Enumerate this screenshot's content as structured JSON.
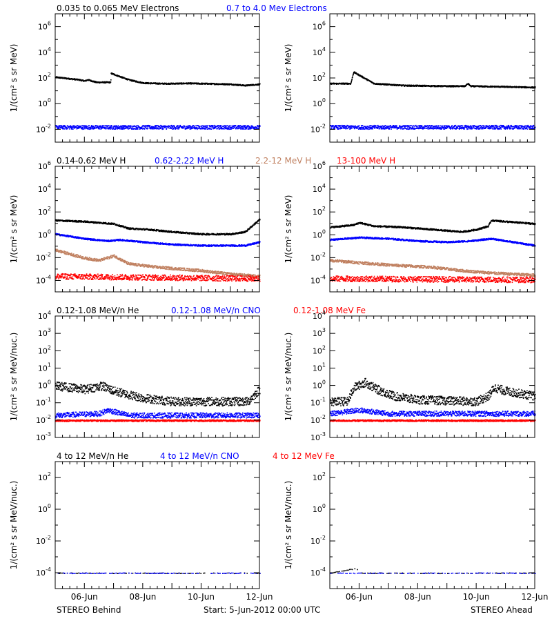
{
  "footer": {
    "left_label": "STEREO Behind",
    "center_label": "Start:  5-Jun-2012 00:00 UTC",
    "right_label": "STEREO Ahead"
  },
  "x_ticks": [
    "06-Jun",
    "08-Jun",
    "10-Jun",
    "12-Jun"
  ],
  "chart_data": [
    {
      "type": "scatter",
      "row": 1,
      "ylabel": "1/(cm² s sr MeV)",
      "log_y": true,
      "yticks_exp": [
        -2,
        0,
        2,
        4,
        6
      ],
      "ylim_exp": [
        -3,
        7
      ],
      "xlim_days": [
        5,
        12
      ],
      "legend": [
        {
          "text": "0.035 to 0.065 MeV Electrons",
          "color": "#000000"
        },
        {
          "text": "0.7 to 4.0 Mev Electrons",
          "color": "#0000ff"
        }
      ],
      "panels": {
        "behind": {
          "series": [
            {
              "color": "#000000",
              "knots": [
                [
                  5.0,
                  2.1
                ],
                [
                  5.8,
                  1.9
                ],
                [
                  6.0,
                  1.8
                ],
                [
                  6.1,
                  1.9
                ],
                [
                  6.4,
                  1.7
                ],
                [
                  6.89,
                  1.7
                ],
                [
                  6.9,
                  2.4
                ],
                [
                  7.5,
                  1.9
                ],
                [
                  8.0,
                  1.65
                ],
                [
                  8.6,
                  1.6
                ],
                [
                  9.0,
                  1.6
                ],
                [
                  9.5,
                  1.62
                ],
                [
                  10.0,
                  1.6
                ],
                [
                  11.0,
                  1.55
                ],
                [
                  11.5,
                  1.45
                ],
                [
                  12.0,
                  1.55
                ]
              ],
              "scatter": 0.05
            },
            {
              "color": "#0000ff",
              "knots": [
                [
                  5.0,
                  -1.8
                ],
                [
                  12.0,
                  -1.8
                ]
              ],
              "scatter": 0.15
            }
          ]
        },
        "ahead": {
          "series": [
            {
              "color": "#000000",
              "knots": [
                [
                  5.0,
                  1.6
                ],
                [
                  5.7,
                  1.6
                ],
                [
                  5.8,
                  2.5
                ],
                [
                  6.5,
                  1.6
                ],
                [
                  7.5,
                  1.45
                ],
                [
                  9.0,
                  1.4
                ],
                [
                  9.6,
                  1.4
                ],
                [
                  9.7,
                  1.6
                ],
                [
                  9.8,
                  1.4
                ],
                [
                  11.0,
                  1.35
                ],
                [
                  12.0,
                  1.3
                ]
              ],
              "scatter": 0.05
            },
            {
              "color": "#0000ff",
              "knots": [
                [
                  5.0,
                  -1.8
                ],
                [
                  12.0,
                  -1.8
                ]
              ],
              "scatter": 0.15
            }
          ]
        }
      }
    },
    {
      "type": "scatter",
      "row": 2,
      "ylabel": "1/(cm² s sr MeV)",
      "log_y": true,
      "yticks_exp": [
        -4,
        -2,
        0,
        2,
        4,
        6
      ],
      "ylim_exp": [
        -5,
        6
      ],
      "xlim_days": [
        5,
        12
      ],
      "legend": [
        {
          "text": "0.14-0.62 MeV H",
          "color": "#000000"
        },
        {
          "text": "0.62-2.22 MeV H",
          "color": "#0000ff"
        },
        {
          "text": "2.2-12 MeV H",
          "color": "#c08060"
        },
        {
          "text": "13-100 MeV H",
          "color": "#ff0000"
        }
      ],
      "panels": {
        "behind": {
          "series": [
            {
              "color": "#000000",
              "knots": [
                [
                  5.0,
                  1.3
                ],
                [
                  6.0,
                  1.2
                ],
                [
                  7.0,
                  1.0
                ],
                [
                  7.5,
                  0.6
                ],
                [
                  8.2,
                  0.5
                ],
                [
                  9.0,
                  0.3
                ],
                [
                  10.0,
                  0.1
                ],
                [
                  11.0,
                  0.1
                ],
                [
                  11.5,
                  0.3
                ],
                [
                  12.0,
                  1.4
                ]
              ],
              "scatter": 0.07
            },
            {
              "color": "#0000ff",
              "knots": [
                [
                  5.0,
                  0.1
                ],
                [
                  6.0,
                  -0.3
                ],
                [
                  6.8,
                  -0.5
                ],
                [
                  7.2,
                  -0.4
                ],
                [
                  8.0,
                  -0.6
                ],
                [
                  9.0,
                  -0.8
                ],
                [
                  10.0,
                  -0.9
                ],
                [
                  11.5,
                  -0.9
                ],
                [
                  12.0,
                  -0.6
                ]
              ],
              "scatter": 0.07
            },
            {
              "color": "#c08060",
              "knots": [
                [
                  5.0,
                  -1.3
                ],
                [
                  6.0,
                  -2.0
                ],
                [
                  6.5,
                  -2.2
                ],
                [
                  7.0,
                  -1.8
                ],
                [
                  7.5,
                  -2.5
                ],
                [
                  8.5,
                  -2.8
                ],
                [
                  10.0,
                  -3.1
                ],
                [
                  11.0,
                  -3.4
                ],
                [
                  12.0,
                  -3.6
                ]
              ],
              "scatter": 0.12
            },
            {
              "color": "#ff0000",
              "knots": [
                [
                  5.0,
                  -3.6
                ],
                [
                  12.0,
                  -3.8
                ]
              ],
              "scatter": 0.25
            }
          ]
        },
        "ahead": {
          "series": [
            {
              "color": "#000000",
              "knots": [
                [
                  5.0,
                  0.7
                ],
                [
                  5.8,
                  0.9
                ],
                [
                  6.0,
                  1.1
                ],
                [
                  6.5,
                  0.8
                ],
                [
                  7.5,
                  0.7
                ],
                [
                  8.5,
                  0.5
                ],
                [
                  9.5,
                  0.3
                ],
                [
                  10.0,
                  0.5
                ],
                [
                  10.4,
                  0.8
                ],
                [
                  10.5,
                  1.3
                ],
                [
                  11.0,
                  1.2
                ],
                [
                  12.0,
                  1.0
                ]
              ],
              "scatter": 0.07
            },
            {
              "color": "#0000ff",
              "knots": [
                [
                  5.0,
                  -0.4
                ],
                [
                  6.0,
                  -0.2
                ],
                [
                  7.0,
                  -0.3
                ],
                [
                  8.0,
                  -0.5
                ],
                [
                  9.0,
                  -0.6
                ],
                [
                  9.8,
                  -0.5
                ],
                [
                  10.5,
                  -0.3
                ],
                [
                  11.5,
                  -0.7
                ],
                [
                  12.0,
                  -0.9
                ]
              ],
              "scatter": 0.07
            },
            {
              "color": "#c08060",
              "knots": [
                [
                  5.0,
                  -2.2
                ],
                [
                  6.0,
                  -2.4
                ],
                [
                  7.0,
                  -2.6
                ],
                [
                  8.5,
                  -2.8
                ],
                [
                  9.5,
                  -3.1
                ],
                [
                  10.5,
                  -3.3
                ],
                [
                  12.0,
                  -3.5
                ]
              ],
              "scatter": 0.12
            },
            {
              "color": "#ff0000",
              "knots": [
                [
                  5.0,
                  -3.8
                ],
                [
                  12.0,
                  -3.9
                ]
              ],
              "scatter": 0.25
            }
          ]
        }
      }
    },
    {
      "type": "scatter",
      "row": 3,
      "ylabel": "1/(cm² s sr MeV/nuc.)",
      "log_y": true,
      "yticks_exp": [
        -3,
        -2,
        -1,
        0,
        1,
        2,
        3,
        4
      ],
      "ylim_exp": [
        -3,
        4
      ],
      "xlim_days": [
        5,
        12
      ],
      "legend": [
        {
          "text": "0.12-1.08 MeV/n He",
          "color": "#000000"
        },
        {
          "text": "0.12-1.08 MeV/n CNO",
          "color": "#0000ff"
        },
        {
          "text": "0.12-1.08 MeV Fe",
          "color": "#ff0000"
        }
      ],
      "panels": {
        "behind": {
          "series": [
            {
              "color": "#000000",
              "knots": [
                [
                  5.0,
                  0.0
                ],
                [
                  6.0,
                  -0.2
                ],
                [
                  6.6,
                  0.0
                ],
                [
                  7.0,
                  -0.3
                ],
                [
                  8.0,
                  -0.7
                ],
                [
                  9.0,
                  -0.9
                ],
                [
                  11.6,
                  -0.9
                ],
                [
                  12.0,
                  -0.2
                ]
              ],
              "scatter": 0.25
            },
            {
              "color": "#0000ff",
              "knots": [
                [
                  5.0,
                  -1.7
                ],
                [
                  6.5,
                  -1.6
                ],
                [
                  6.8,
                  -1.4
                ],
                [
                  7.5,
                  -1.7
                ],
                [
                  12.0,
                  -1.7
                ]
              ],
              "scatter": 0.15
            },
            {
              "color": "#ff0000",
              "knots": [
                [
                  5.0,
                  -2.0
                ],
                [
                  12.0,
                  -2.0
                ]
              ],
              "scatter": 0.05
            }
          ]
        },
        "ahead": {
          "series": [
            {
              "color": "#000000",
              "knots": [
                [
                  5.0,
                  -0.9
                ],
                [
                  5.6,
                  -0.9
                ],
                [
                  5.8,
                  -0.1
                ],
                [
                  6.2,
                  0.2
                ],
                [
                  6.6,
                  -0.2
                ],
                [
                  7.2,
                  -0.6
                ],
                [
                  8.0,
                  -0.8
                ],
                [
                  10.0,
                  -0.9
                ],
                [
                  10.4,
                  -0.6
                ],
                [
                  10.6,
                  -0.1
                ],
                [
                  11.0,
                  -0.3
                ],
                [
                  12.0,
                  -0.6
                ]
              ],
              "scatter": 0.25
            },
            {
              "color": "#0000ff",
              "knots": [
                [
                  5.0,
                  -1.6
                ],
                [
                  6.0,
                  -1.4
                ],
                [
                  7.0,
                  -1.6
                ],
                [
                  12.0,
                  -1.6
                ]
              ],
              "scatter": 0.15
            },
            {
              "color": "#ff0000",
              "knots": [
                [
                  5.0,
                  -2.0
                ],
                [
                  12.0,
                  -2.0
                ]
              ],
              "scatter": 0.05
            }
          ]
        }
      }
    },
    {
      "type": "scatter",
      "row": 4,
      "ylabel": "1/(cm² s sr MeV/nuc.)",
      "log_y": true,
      "yticks_exp": [
        -4,
        -2,
        0,
        2
      ],
      "ylim_exp": [
        -5,
        3
      ],
      "xlim_days": [
        5,
        12
      ],
      "legend": [
        {
          "text": "4 to 12 MeV/n He",
          "color": "#000000"
        },
        {
          "text": "4 to 12 MeV/n CNO",
          "color": "#0000ff"
        },
        {
          "text": "4 to 12 MeV Fe",
          "color": "#ff0000"
        }
      ],
      "panels": {
        "behind": {
          "series": [
            {
              "color": "#000000",
              "knots": [
                [
                  5.0,
                  -4.0
                ],
                [
                  12.0,
                  -4.0
                ]
              ],
              "scatter": 0.02,
              "sparse": true
            },
            {
              "color": "#0000ff",
              "knots": [
                [
                  5.0,
                  -4.0
                ],
                [
                  12.0,
                  -4.0
                ]
              ],
              "scatter": 0.02,
              "sparse": true
            }
          ]
        },
        "ahead": {
          "series": [
            {
              "color": "#000000",
              "knots": [
                [
                  5.0,
                  -4.0
                ],
                [
                  5.9,
                  -3.7
                ],
                [
                  6.0,
                  -4.0
                ],
                [
                  12.0,
                  -4.0
                ]
              ],
              "scatter": 0.02,
              "sparse": true
            },
            {
              "color": "#0000ff",
              "knots": [
                [
                  5.0,
                  -4.0
                ],
                [
                  12.0,
                  -4.0
                ]
              ],
              "scatter": 0.02,
              "sparse": true
            }
          ]
        }
      }
    }
  ]
}
